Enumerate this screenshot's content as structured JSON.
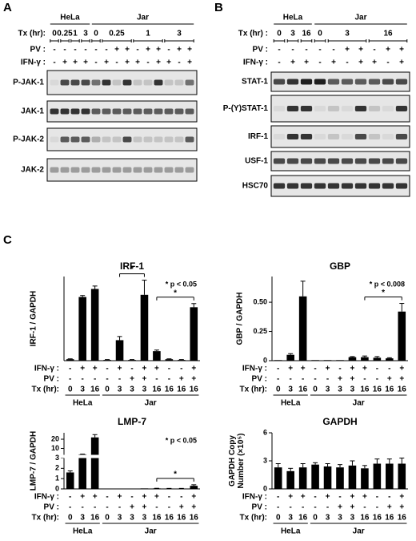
{
  "panels": {
    "A": {
      "label": "A",
      "groups": [
        {
          "label": "HeLa",
          "size": 4
        },
        {
          "label": "Jar",
          "size": 10
        }
      ],
      "tx_label": "Tx (hr):",
      "tx": [
        {
          "label": "0",
          "lanes": 1
        },
        {
          "label": "0.25",
          "lanes": 1
        },
        {
          "label": "1",
          "lanes": 1
        },
        {
          "label": "3",
          "lanes": 1
        },
        {
          "label": "0",
          "lanes": 1
        },
        {
          "label": "0.25",
          "lanes": 3
        },
        {
          "label": "1",
          "lanes": 3
        },
        {
          "label": "3",
          "lanes": 3
        }
      ],
      "pv_label": "PV :",
      "pv": [
        "-",
        "-",
        "-",
        "-",
        "-",
        "-",
        "+",
        "+",
        "-",
        "+",
        "+",
        "-",
        "+",
        "+"
      ],
      "ifn_label": "IFN-γ :",
      "ifn": [
        "-",
        "+",
        "+",
        "+",
        "-",
        "+",
        "-",
        "+",
        "+",
        "-",
        "+",
        "+",
        "-",
        "+"
      ],
      "blots": [
        "P-JAK-1",
        "JAK-1",
        "P-JAK-2",
        "JAK-2"
      ]
    },
    "B": {
      "label": "B",
      "groups": [
        {
          "label": "HeLa",
          "size": 3
        },
        {
          "label": "Jar",
          "size": 7
        }
      ],
      "tx_label": "Tx (hr) :",
      "tx": [
        {
          "label": "0",
          "lanes": 1
        },
        {
          "label": "3",
          "lanes": 1
        },
        {
          "label": "16",
          "lanes": 1
        },
        {
          "label": "0",
          "lanes": 1
        },
        {
          "label": "3",
          "lanes": 3
        },
        {
          "label": "16",
          "lanes": 3
        }
      ],
      "pv_label": "PV :",
      "pv": [
        "-",
        "-",
        "-",
        "-",
        "-",
        "+",
        "+",
        "-",
        "+",
        "+"
      ],
      "ifn_label": "IFN-γ :",
      "ifn": [
        "-",
        "+",
        "+",
        "-",
        "+",
        "-",
        "+",
        "+",
        "-",
        "+"
      ],
      "blots": [
        "STAT-1",
        "P-(Y)STAT-1",
        "IRF-1",
        "USF-1",
        "HSC70"
      ]
    },
    "C": {
      "label": "C"
    }
  },
  "chart_data": [
    {
      "type": "bar",
      "title": "IRF-1",
      "y_label": [
        "IRF-1 / GAPDH"
      ],
      "row_labels": [
        "IFN-γ :",
        "PV :",
        "Tx (hr):"
      ],
      "ifn": [
        "-",
        "+",
        "+",
        "-",
        "+",
        "-",
        "+",
        "+",
        "-",
        "-",
        "+"
      ],
      "pv": [
        "-",
        "-",
        "-",
        "-",
        "-",
        "+",
        "+",
        "-",
        "-",
        "+",
        "+"
      ],
      "categories": [
        "0",
        "3",
        "16",
        "0",
        "3",
        "3",
        "3",
        "16",
        "16",
        "16",
        "16"
      ],
      "groups": [
        {
          "label": "HeLa",
          "size": 3
        },
        {
          "label": "Jar",
          "size": 8
        }
      ],
      "values": [
        0.02,
        0.87,
        0.98,
        0.01,
        0.28,
        0.01,
        0.9,
        0.13,
        0.02,
        0.01,
        0.73
      ],
      "errors": [
        0.005,
        0.02,
        0.04,
        0.005,
        0.05,
        0.005,
        0.2,
        0.015,
        0.005,
        0.005,
        0.05
      ],
      "ylim": [
        0,
        1.15
      ],
      "color": "#000000",
      "annotation": "* p < 0.05",
      "brackets": [
        {
          "between": [
            4,
            6
          ],
          "label": "*"
        },
        {
          "between": [
            7,
            10
          ],
          "label": "*"
        }
      ]
    },
    {
      "type": "bar",
      "title": "GBP",
      "y_label": [
        "GBP / GAPDH"
      ],
      "row_labels": [
        "IFN-γ :",
        "PV :",
        "Tx (hr):"
      ],
      "ifn": [
        "-",
        "+",
        "+",
        "-",
        "+",
        "-",
        "+",
        "+",
        "-",
        "-",
        "+"
      ],
      "pv": [
        "-",
        "-",
        "-",
        "-",
        "-",
        "+",
        "+",
        "-",
        "-",
        "+",
        "+"
      ],
      "categories": [
        "0",
        "3",
        "16",
        "0",
        "3",
        "3",
        "3",
        "16",
        "16",
        "16",
        "16"
      ],
      "groups": [
        {
          "label": "HeLa",
          "size": 3
        },
        {
          "label": "Jar",
          "size": 8
        }
      ],
      "values": [
        0.005,
        0.05,
        0.55,
        0.005,
        0.005,
        0.005,
        0.03,
        0.03,
        0.025,
        0.02,
        0.42
      ],
      "errors": [
        0,
        0.01,
        0.13,
        0,
        0,
        0,
        0.005,
        0.01,
        0.01,
        0.005,
        0.07
      ],
      "ylim": [
        0,
        0.72
      ],
      "yticks": [
        0,
        0.25,
        {
          "value": 0.5,
          "label": "0.50"
        }
      ],
      "color": "#000000",
      "annotation": "* p < 0.008",
      "brackets": [
        {
          "between": [
            7,
            10
          ],
          "label": "*"
        }
      ]
    },
    {
      "type": "bar",
      "title": "LMP-7",
      "y_label": [
        "LMP-7 / GAPDH"
      ],
      "row_labels": [
        "IFN-γ :",
        "PV :",
        "Tx (hr):"
      ],
      "ifn": [
        "-",
        "+",
        "+",
        "-",
        "+",
        "-",
        "+",
        "+",
        "-",
        "-",
        "+"
      ],
      "pv": [
        "-",
        "-",
        "-",
        "-",
        "-",
        "+",
        "+",
        "-",
        "-",
        "+",
        "+"
      ],
      "categories": [
        "0",
        "3",
        "16",
        "0",
        "3",
        "3",
        "3",
        "16",
        "16",
        "16",
        "16"
      ],
      "groups": [
        {
          "label": "HeLa",
          "size": 3
        },
        {
          "label": "Jar",
          "size": 8
        }
      ],
      "values": [
        1.6,
        3.5,
        22,
        0.02,
        0.03,
        0.02,
        0.05,
        0.05,
        0.04,
        0.04,
        0.3
      ],
      "errors": [
        0.15,
        0.3,
        3,
        0,
        0,
        0,
        0,
        0.01,
        0.01,
        0.01,
        0.1
      ],
      "ylim": [
        0,
        27
      ],
      "ybreak": 3,
      "yticks": [
        0,
        1,
        2,
        3,
        10,
        20
      ],
      "color": "#000000",
      "annotation": "* p < 0.05",
      "brackets": [
        {
          "between": [
            7,
            10
          ],
          "label": "*"
        }
      ]
    },
    {
      "type": "bar",
      "title": "GAPDH",
      "y_label": [
        "GAPDH Copy",
        "Number (×10⁵)"
      ],
      "row_labels": [
        "IFN-γ :",
        "PV :",
        "Tx (hr):"
      ],
      "ifn": [
        "-",
        "+",
        "+",
        "-",
        "+",
        "-",
        "+",
        "+",
        "-",
        "-",
        "+"
      ],
      "pv": [
        "-",
        "-",
        "-",
        "-",
        "-",
        "+",
        "+",
        "-",
        "-",
        "+",
        "+"
      ],
      "categories": [
        "0",
        "3",
        "16",
        "0",
        "3",
        "3",
        "3",
        "16",
        "16",
        "16",
        "16"
      ],
      "groups": [
        {
          "label": "HeLa",
          "size": 3
        },
        {
          "label": "Jar",
          "size": 8
        }
      ],
      "values": [
        2.3,
        1.9,
        2.3,
        2.6,
        2.4,
        2.3,
        2.5,
        2.2,
        2.7,
        2.7,
        2.7
      ],
      "errors": [
        0.4,
        0.3,
        0.4,
        0.2,
        0.3,
        0.3,
        0.5,
        0.3,
        0.5,
        0.5,
        0.6
      ],
      "ylim": [
        0,
        6
      ],
      "yticks": [
        0,
        3,
        6
      ],
      "color": "#000000"
    }
  ]
}
